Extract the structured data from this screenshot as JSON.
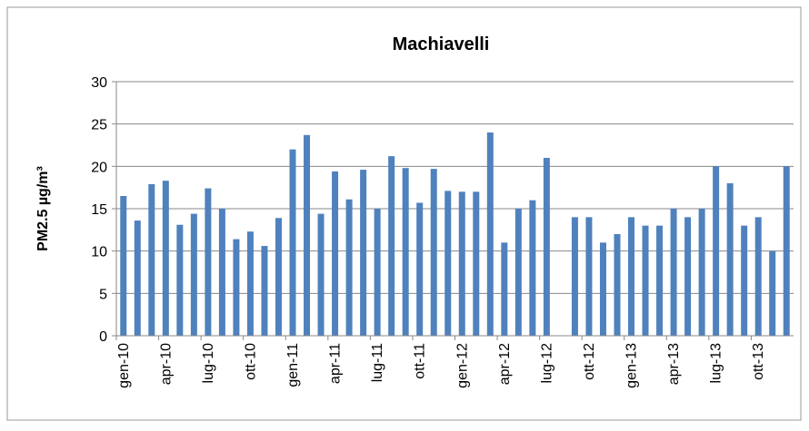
{
  "chart_data": {
    "type": "bar",
    "title": "Machiavelli",
    "y_label": "PM2.5 µg/m³",
    "categories": [
      "gen-10",
      null,
      null,
      "apr-10",
      null,
      null,
      "lug-10",
      null,
      null,
      "ott-10",
      null,
      null,
      "gen-11",
      null,
      null,
      "apr-11",
      null,
      null,
      "lug-11",
      null,
      null,
      "ott-11",
      null,
      null,
      "gen-12",
      null,
      null,
      "apr-12",
      null,
      null,
      "lug-12",
      null,
      null,
      "ott-12",
      null,
      null,
      "gen-13",
      null,
      null,
      "apr-13",
      null,
      null,
      "lug-13",
      null,
      null,
      "ott-13",
      null,
      null
    ],
    "values": [
      16.5,
      13.6,
      17.9,
      18.3,
      13.1,
      14.4,
      17.4,
      15,
      11.4,
      12.3,
      10.6,
      13.9,
      22,
      23.7,
      14.4,
      19.4,
      16.1,
      19.6,
      15,
      21.2,
      19.8,
      15.7,
      19.7,
      17.1,
      17,
      17,
      24,
      11,
      15,
      16,
      21,
      null,
      14,
      14,
      11,
      12,
      14,
      13,
      13,
      15,
      14,
      15,
      20,
      18,
      13,
      14,
      10,
      20
    ],
    "color": "#4f81bd",
    "ylim": [
      0,
      30
    ],
    "yticks": [
      0,
      5,
      10,
      15,
      20,
      25,
      30
    ],
    "grid": true
  }
}
